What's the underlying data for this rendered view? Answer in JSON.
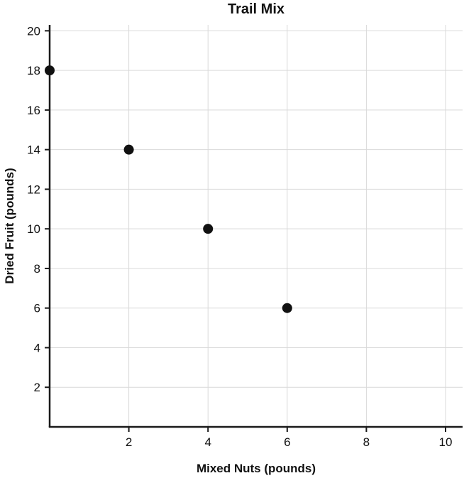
{
  "chart_data": {
    "type": "scatter",
    "title": "Trail Mix",
    "xlabel": "Mixed Nuts (pounds)",
    "ylabel": "Dried Fruit (pounds)",
    "points": [
      {
        "x": 0,
        "y": 18
      },
      {
        "x": 2,
        "y": 14
      },
      {
        "x": 4,
        "y": 10
      },
      {
        "x": 6,
        "y": 6
      }
    ],
    "xticks": [
      2,
      4,
      6,
      8,
      10
    ],
    "yticks": [
      2,
      4,
      6,
      8,
      10,
      12,
      14,
      16,
      18,
      20
    ],
    "xlim": [
      0,
      10.43
    ],
    "ylim": [
      0,
      20.3
    ],
    "grid": true,
    "legend": "none",
    "colors": {
      "point": "#111111",
      "axis": "#1a1a1a",
      "grid": "#d9d9d9"
    }
  }
}
